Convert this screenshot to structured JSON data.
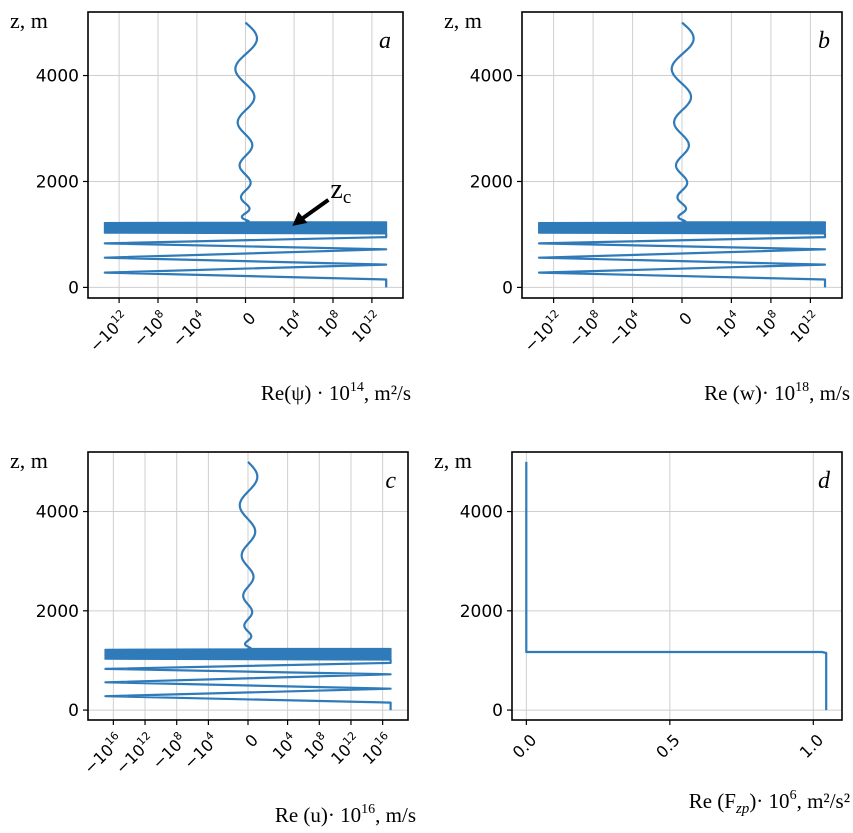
{
  "colors": {
    "line": "#2f7ab9",
    "grid": "#cfcfcf",
    "axes": "#000000",
    "text": "#000000"
  },
  "chart_data": [
    {
      "type": "line",
      "panel_letter": "a",
      "ylabel": "z, m",
      "xlabel_parts": {
        "prefix": "Re(ψ) · 10",
        "exponent": "14",
        "suffix": ", m²/s"
      },
      "xscale": "symlog",
      "y_ticks": [
        "0",
        "2000",
        "4000"
      ],
      "y_tick_values": [
        0,
        2000,
        4000
      ],
      "x_ticks": [
        "−10",
        "−10",
        "−10",
        "0",
        "10",
        "10",
        "10"
      ],
      "x_tick_exponents": [
        "12",
        "8",
        "4",
        "",
        "4",
        "8",
        "12"
      ],
      "x_tick_values": [
        -1000000000000.0,
        -100000000.0,
        -10000.0,
        0,
        10000.0,
        100000000.0,
        1000000000000.0
      ],
      "ylim": [
        -200,
        5200
      ],
      "annotation": {
        "text": "z",
        "subscript": "c",
        "points_to_z": 1200
      },
      "series": [
        {
          "upper_profile": {
            "z_range": [
              1200,
              5000
            ],
            "description_amplitude_x_symlog": 0.55
          },
          "lower_profile": {
            "z_range": [
              0,
              1150
            ],
            "x_limit": 30000000000000.0
          }
        }
      ]
    },
    {
      "type": "line",
      "panel_letter": "b",
      "ylabel": "z, m",
      "xlabel_parts": {
        "prefix": "Re (w)· 10",
        "exponent": "18",
        "suffix": ", m/s"
      },
      "xscale": "symlog",
      "y_ticks": [
        "0",
        "2000",
        "4000"
      ],
      "y_tick_values": [
        0,
        2000,
        4000
      ],
      "x_ticks": [
        "−10",
        "−10",
        "−10",
        "0",
        "10",
        "10",
        "10"
      ],
      "x_tick_exponents": [
        "12",
        "8",
        "4",
        "",
        "4",
        "8",
        "12"
      ],
      "x_tick_values": [
        -1000000000000.0,
        -100000000.0,
        -10000.0,
        0,
        10000.0,
        100000000.0,
        1000000000000.0
      ],
      "ylim": [
        -200,
        5200
      ],
      "series": [
        {
          "upper_profile": {
            "z_range": [
              1200,
              5000
            ]
          },
          "lower_profile": {
            "z_range": [
              0,
              1150
            ],
            "x_limit": 30000000000000.0
          }
        }
      ]
    },
    {
      "type": "line",
      "panel_letter": "c",
      "ylabel": "z, m",
      "xlabel_parts": {
        "prefix": "Re (u)· 10",
        "exponent": "16",
        "suffix": ", m/s"
      },
      "xscale": "symlog",
      "y_ticks": [
        "0",
        "2000",
        "4000"
      ],
      "y_tick_values": [
        0,
        2000,
        4000
      ],
      "x_ticks": [
        "−10",
        "−10",
        "−10",
        "−10",
        "0",
        "10",
        "10",
        "10",
        "10"
      ],
      "x_tick_exponents": [
        "16",
        "12",
        "8",
        "4",
        "",
        "4",
        "8",
        "12",
        "16"
      ],
      "x_tick_values": [
        -1e+16,
        -1000000000000.0,
        -100000000.0,
        -10000.0,
        0,
        10000.0,
        100000000.0,
        1000000000000.0,
        1e+16
      ],
      "ylim": [
        -200,
        5200
      ],
      "series": [
        {
          "upper_profile": {
            "z_range": [
              1200,
              5000
            ]
          },
          "lower_profile": {
            "z_range": [
              0,
              1150
            ],
            "x_limit": 1e+17
          }
        }
      ]
    },
    {
      "type": "line",
      "panel_letter": "d",
      "ylabel": "z, m",
      "xlabel_parts": {
        "prefix": "Re (F",
        "subscript": "zp",
        "mid": ")· 10",
        "exponent": "6",
        "suffix": ", m²/s²"
      },
      "xscale": "linear",
      "y_ticks": [
        "0",
        "2000",
        "4000"
      ],
      "y_tick_values": [
        0,
        2000,
        4000
      ],
      "x_ticks": [
        "0.0",
        "0.5",
        "1.0"
      ],
      "x_tick_values": [
        0.0,
        0.5,
        1.0
      ],
      "xlim": [
        -0.05,
        1.1
      ],
      "ylim": [
        -200,
        5200
      ],
      "series": [
        {
          "x": [
            0.0,
            0.0,
            0.0,
            1.03,
            1.045,
            1.045
          ],
          "z": [
            5000,
            1200,
            1170,
            1170,
            1150,
            0
          ]
        }
      ]
    }
  ]
}
